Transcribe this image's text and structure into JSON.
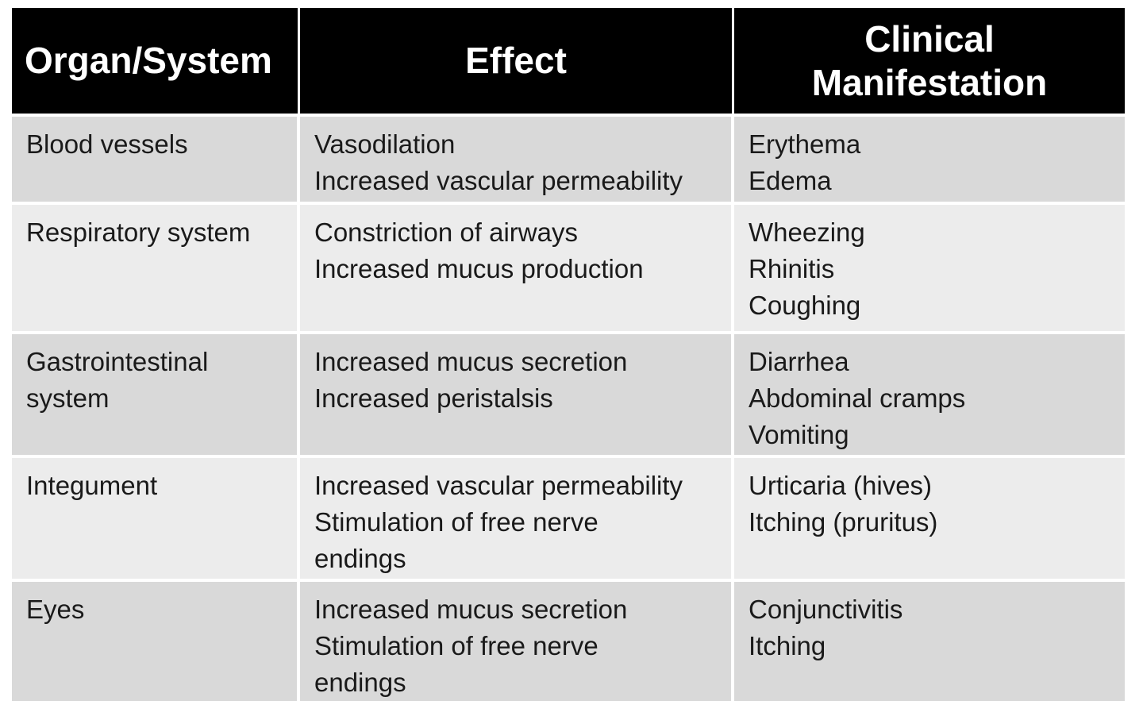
{
  "headers": [
    "Organ/System",
    "Effect",
    "Clinical Manifestation"
  ],
  "header_lines": {
    "col3": [
      "Clinical",
      "Manifestation"
    ]
  },
  "rows": [
    {
      "organ": [
        "Blood vessels"
      ],
      "effect": [
        "Vasodilation",
        "Increased vascular permeability"
      ],
      "manifestation": [
        "Erythema",
        "Edema"
      ]
    },
    {
      "organ": [
        "Respiratory system"
      ],
      "effect": [
        "Constriction of airways",
        "Increased mucus production"
      ],
      "manifestation": [
        "Wheezing",
        "Rhinitis",
        "Coughing"
      ]
    },
    {
      "organ": [
        "Gastrointestinal",
        "system"
      ],
      "effect": [
        "Increased mucus secretion",
        "Increased peristalsis"
      ],
      "manifestation": [
        "Diarrhea",
        "Abdominal cramps",
        "Vomiting"
      ]
    },
    {
      "organ": [
        "Integument"
      ],
      "effect": [
        "Increased vascular permeability",
        "Stimulation of free nerve",
        "endings"
      ],
      "manifestation": [
        "Urticaria (hives)",
        "Itching (pruritus)"
      ]
    },
    {
      "organ": [
        "Eyes"
      ],
      "effect": [
        "Increased mucus secretion",
        "Stimulation of free nerve",
        "endings"
      ],
      "manifestation": [
        "Conjunctivitis",
        "Itching"
      ]
    }
  ],
  "colors": {
    "header_bg": "#000000",
    "header_text": "#ffffff",
    "row_dark": "#d9d9d9",
    "row_light": "#ececec"
  }
}
